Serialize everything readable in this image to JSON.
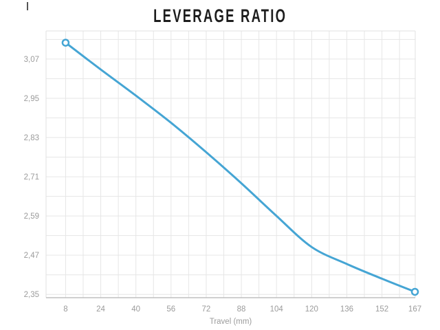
{
  "page": {
    "title": "LEVERAGE RATIO"
  },
  "colors": {
    "background": "#ffffff",
    "line": "#45a5d4",
    "marker_fill": "#ffffff",
    "grid": "#e6e6e6",
    "plot_border": "#e0e0e0",
    "axis_line": "#bfbfbf",
    "tick_text": "#9b9b9b",
    "axis_label_text": "#9b9b9b",
    "title_text": "#1d1d1d"
  },
  "chart_data": {
    "type": "line",
    "title": "LEVERAGE RATIO",
    "xlabel": "Travel (mm)",
    "ylabel": "",
    "x": [
      8,
      24,
      40,
      56,
      72,
      88,
      104,
      120,
      136,
      152,
      167
    ],
    "values": [
      3.12,
      3.038,
      2.958,
      2.875,
      2.785,
      2.69,
      2.59,
      2.495,
      2.443,
      2.398,
      2.358
    ],
    "series_name": "Leverage Ratio",
    "x_ticks": [
      8,
      24,
      40,
      56,
      72,
      88,
      104,
      120,
      136,
      152,
      167
    ],
    "x_tick_labels": [
      "8",
      "24",
      "40",
      "56",
      "72",
      "88",
      "104",
      "120",
      "136",
      "152",
      "167"
    ],
    "y_ticks": [
      3.07,
      2.95,
      2.83,
      2.71,
      2.59,
      2.47,
      2.35
    ],
    "y_tick_labels": [
      "3,07",
      "2,95",
      "2,83",
      "2,71",
      "2,59",
      "2,47",
      "2,35"
    ],
    "x_grid_step": 8,
    "y_grid_step": 0.06,
    "x_grid_start": 8,
    "y_grid_start": 2.35,
    "xlim": [
      -0.89,
      167.15
    ],
    "ylim": [
      2.34,
      3.156
    ],
    "grid": true,
    "legend": "none",
    "markers": "endpoints-open-circle",
    "decimal_separator": ","
  }
}
